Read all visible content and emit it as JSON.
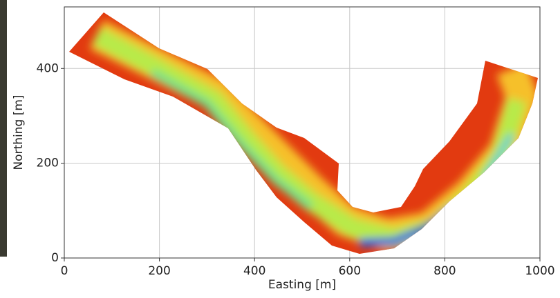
{
  "chart_data": {
    "type": "heatmap",
    "xlabel": "Easting [m]",
    "ylabel": "Northing [m]",
    "xlim": [
      0,
      1000
    ],
    "ylim": [
      0,
      530
    ],
    "xticks": [
      0,
      200,
      400,
      600,
      800,
      1000
    ],
    "yticks": [
      0,
      200,
      400
    ],
    "grid": true
  }
}
